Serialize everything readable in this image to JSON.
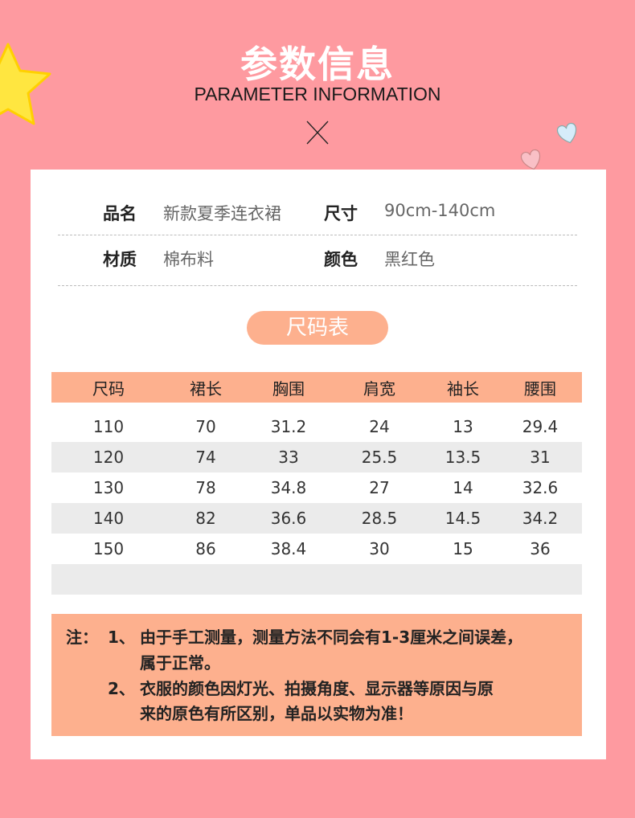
{
  "header": {
    "title": "参数信息",
    "subtitle": "PARAMETER INFORMATION"
  },
  "colors": {
    "background": "#fe9aa0",
    "accent": "#fdb08e",
    "stripe": "#ebebeb"
  },
  "info": [
    {
      "label": "品名",
      "value": "新款夏季连衣裙"
    },
    {
      "label": "尺寸",
      "value": "90cm-140cm"
    },
    {
      "label": "材质",
      "value": "棉布料"
    },
    {
      "label": "颜色",
      "value": "黑红色"
    }
  ],
  "size_chart": {
    "title": "尺码表",
    "columns": [
      "尺码",
      "裙长",
      "胸围",
      "肩宽",
      "袖长",
      "腰围"
    ],
    "rows": [
      [
        "110",
        "70",
        "31.2",
        "24",
        "13",
        "29.4"
      ],
      [
        "120",
        "74",
        "33",
        "25.5",
        "13.5",
        "31"
      ],
      [
        "130",
        "78",
        "34.8",
        "27",
        "14",
        "32.6"
      ],
      [
        "140",
        "82",
        "36.6",
        "28.5",
        "14.5",
        "34.2"
      ],
      [
        "150",
        "86",
        "38.4",
        "30",
        "15",
        "36"
      ]
    ]
  },
  "note": {
    "prefix": "注：",
    "items": [
      {
        "num": "1、",
        "line1": "由于手工测量，测量方法不同会有1-3厘米之间误差，",
        "line2": "属于正常。"
      },
      {
        "num": "2、",
        "line1": "衣服的颜色因灯光、拍摄角度、显示器等原因与原",
        "line2": "来的原色有所区别，单品以实物为准！"
      }
    ]
  }
}
